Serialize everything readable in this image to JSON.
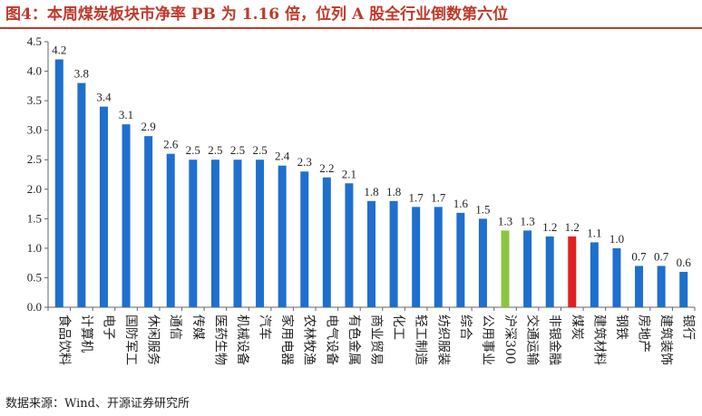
{
  "figure": {
    "title": "图4：本周煤炭板块市净率 PB 为 1.16 倍，位列 A 股全行业倒数第六位",
    "source": "数据来源：Wind、开源证券研究所"
  },
  "chart_data": {
    "type": "bar",
    "title": "",
    "xlabel": "",
    "ylabel": "",
    "ylim": [
      0,
      4.5
    ],
    "yticks": [
      "0.0",
      "0.5",
      "1.0",
      "1.5",
      "2.0",
      "2.5",
      "3.0",
      "3.5",
      "4.0",
      "4.5"
    ],
    "grid": false,
    "legend": "none",
    "categories": [
      "食品饮料",
      "计算机",
      "电子",
      "国防军工",
      "休闲服务",
      "通信",
      "传媒",
      "医药生物",
      "机械设备",
      "汽车",
      "家用电器",
      "农林牧渔",
      "电气设备",
      "有色金属",
      "商业贸易",
      "化工",
      "轻工制造",
      "纺织服装",
      "综合",
      "公用事业",
      "沪深300",
      "交通运输",
      "非银金融",
      "煤炭",
      "建筑材料",
      "钢铁",
      "房地产",
      "建筑装饰",
      "银行"
    ],
    "values": [
      4.2,
      3.8,
      3.4,
      3.1,
      2.9,
      2.6,
      2.5,
      2.5,
      2.5,
      2.5,
      2.4,
      2.3,
      2.2,
      2.1,
      1.8,
      1.8,
      1.7,
      1.7,
      1.6,
      1.5,
      1.3,
      1.3,
      1.2,
      1.2,
      1.1,
      1.0,
      0.7,
      0.7,
      0.6
    ],
    "value_labels": [
      "4.2",
      "3.8",
      "3.4",
      "3.1",
      "2.9",
      "2.6",
      "2.5",
      "2.5",
      "2.5",
      "2.5",
      "2.4",
      "2.3",
      "2.2",
      "2.1",
      "1.8",
      "1.8",
      "1.7",
      "1.7",
      "1.6",
      "1.5",
      "1.3",
      "1.3",
      "1.2",
      "1.2",
      "1.1",
      "1.0",
      "0.7",
      "0.7",
      "0.6"
    ],
    "colors": {
      "default": "#1F6FCE",
      "highlight": {
        "沪深300": "#8BC53F",
        "煤炭": "#E02020"
      }
    }
  }
}
